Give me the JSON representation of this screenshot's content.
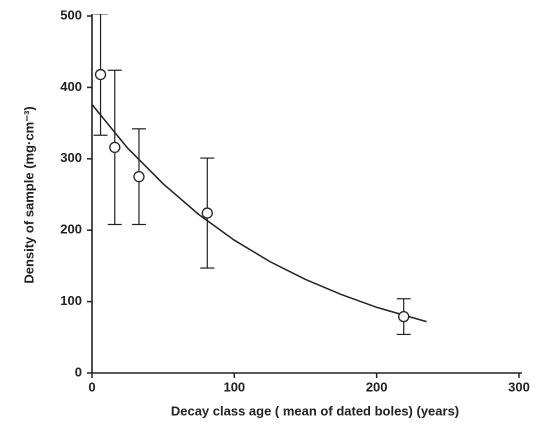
{
  "chart_data": {
    "type": "scatter",
    "x_label": "Decay class age ( mean of dated boles) (years)",
    "y_label": "Density of sample (mg·cm⁻³)",
    "xlim": [
      0,
      300
    ],
    "xticks": [
      0,
      100,
      200,
      300
    ],
    "ylim": [
      0,
      500
    ],
    "yticks": [
      0,
      100,
      200,
      300,
      400,
      500
    ],
    "series": [
      {
        "x": [
          6,
          16,
          33,
          81,
          219
        ],
        "values": [
          418,
          316,
          275,
          224,
          79
        ],
        "errors": [
          85,
          108,
          67,
          77,
          25
        ],
        "color": "#222"
      }
    ],
    "curve": {
      "x": [
        0,
        25,
        50,
        75,
        100,
        125,
        150,
        175,
        200,
        235
      ],
      "values": [
        376,
        315,
        265,
        222,
        186,
        156,
        131,
        110,
        92,
        72
      ],
      "color": "#222"
    }
  }
}
